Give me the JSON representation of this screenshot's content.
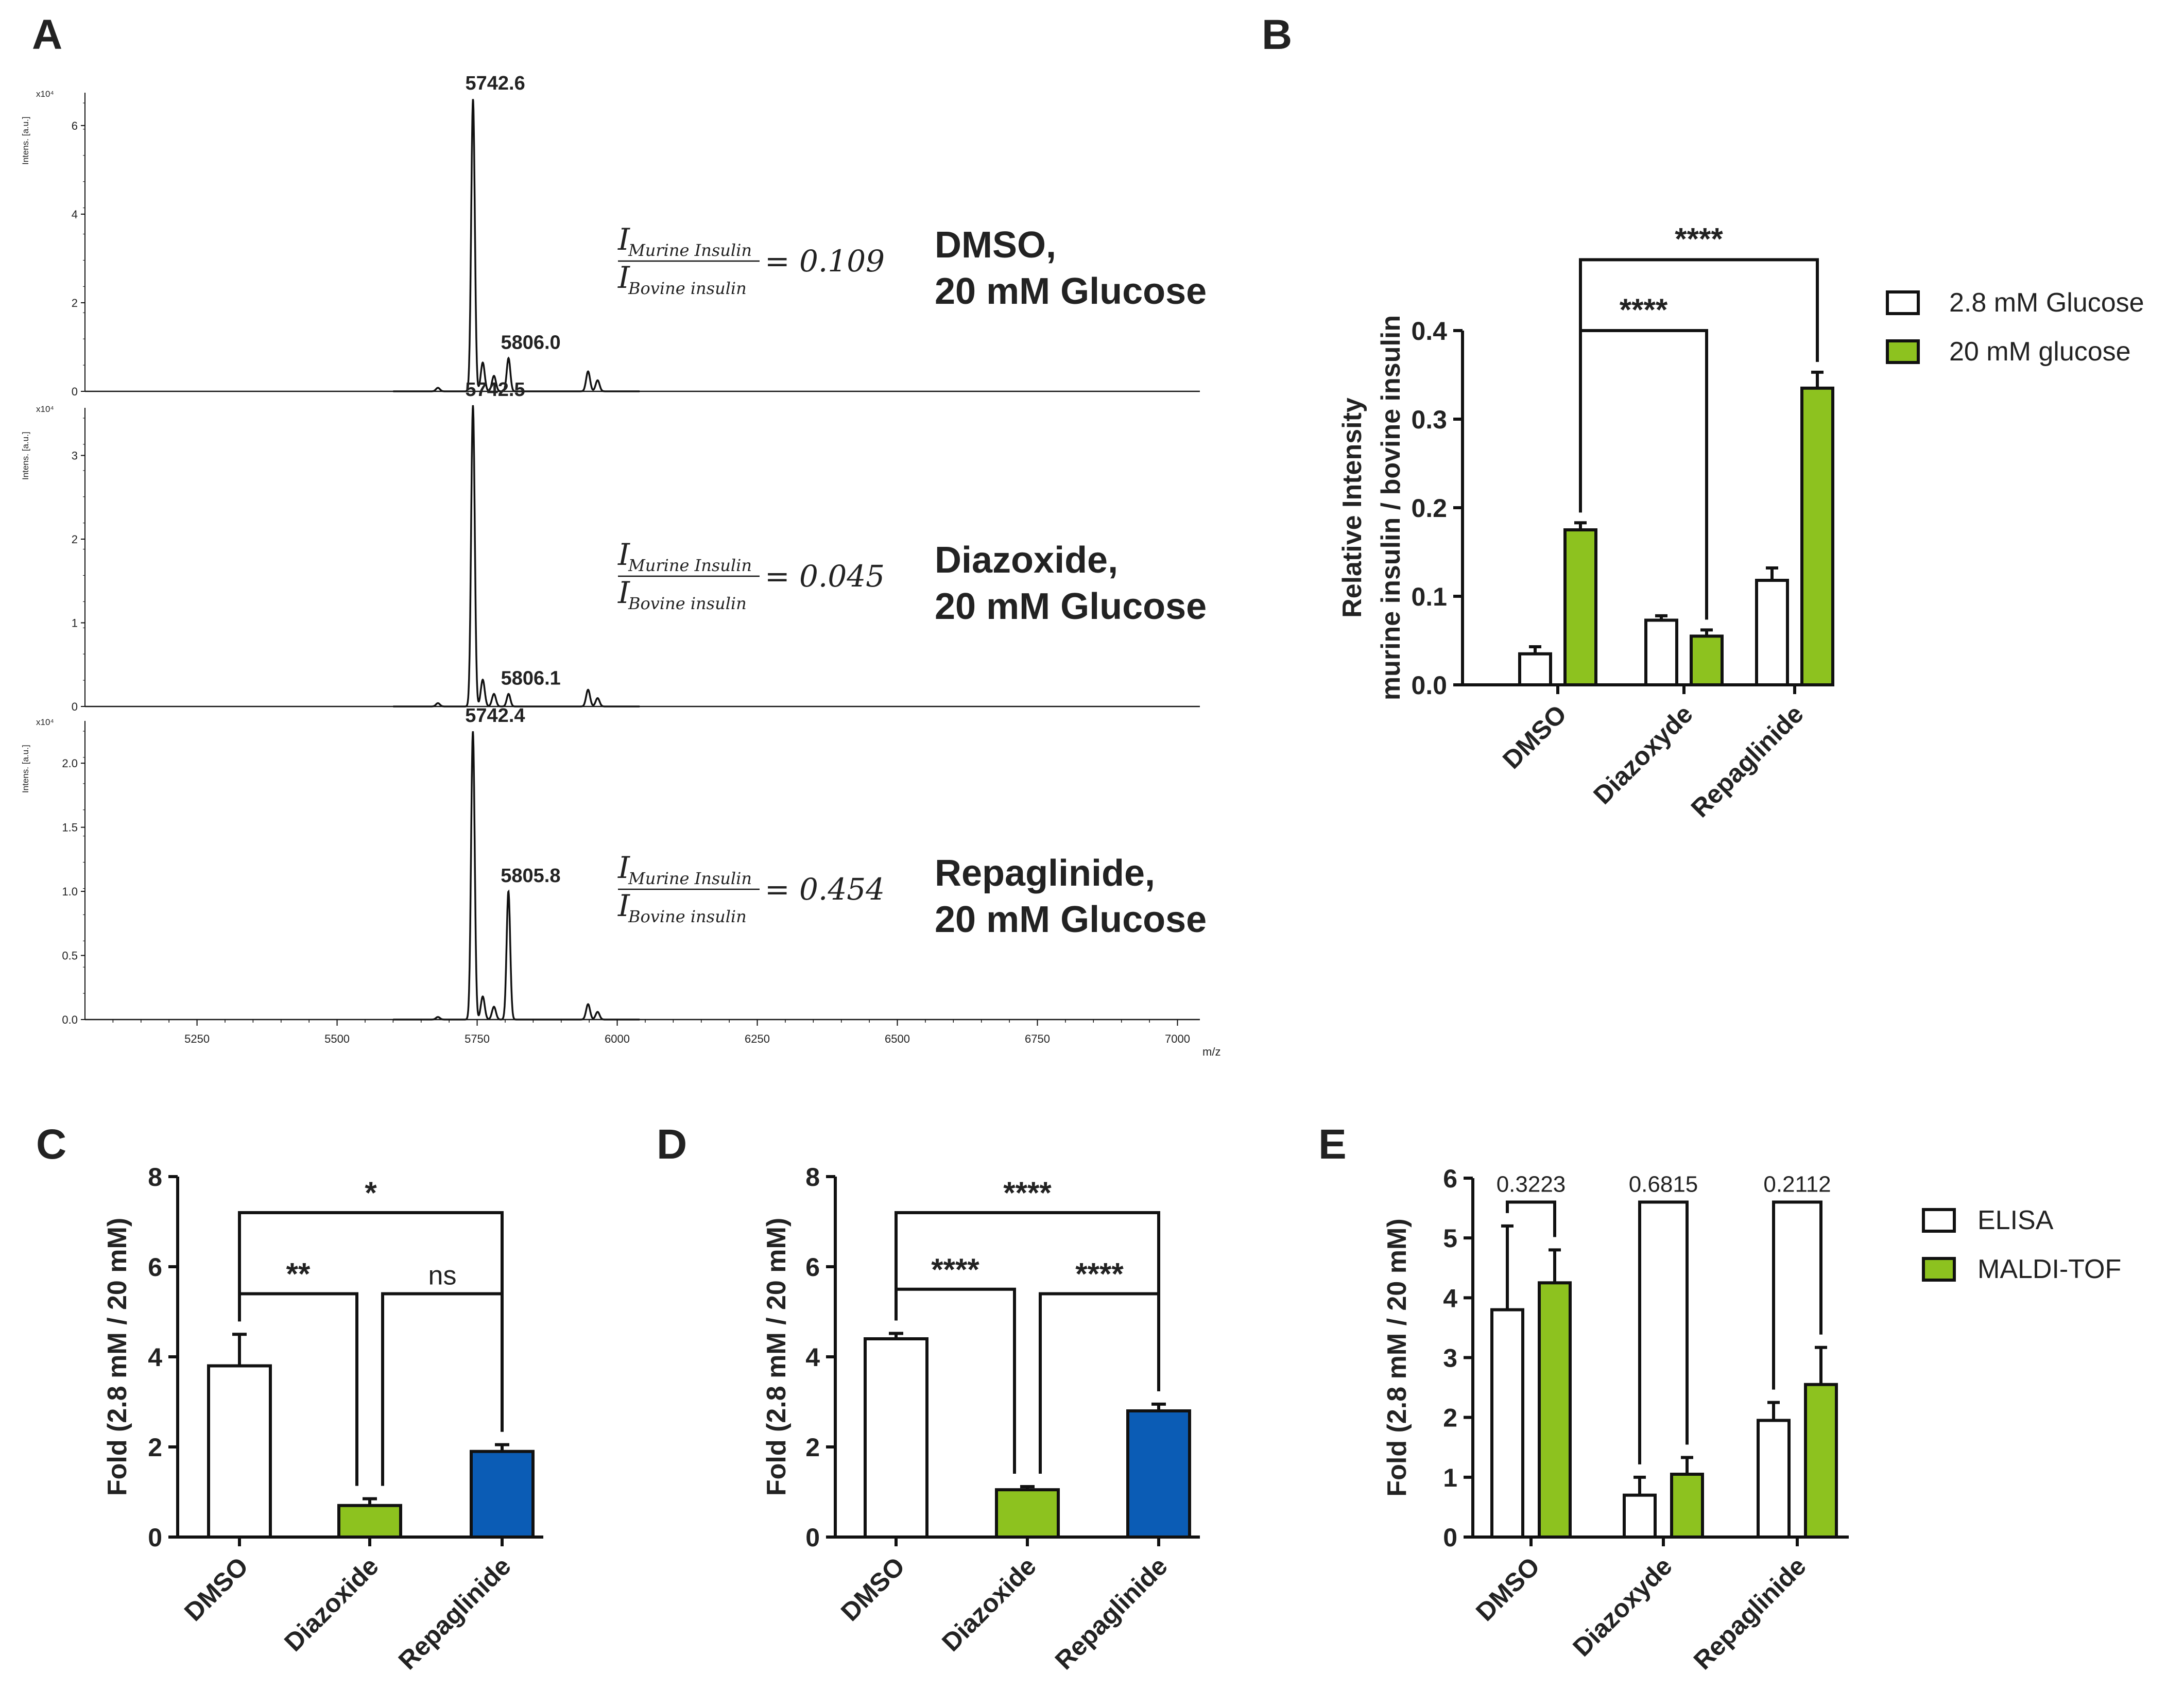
{
  "colors": {
    "green": "#8dc21f",
    "blue": "#0b5cb5",
    "white": "#ffffff",
    "line": "#111111"
  },
  "panel_letters": [
    "A",
    "B",
    "C",
    "D",
    "E"
  ],
  "chart_data": [
    {
      "panel": "A",
      "type": "line",
      "xlabel": "m/z",
      "ylabel": "Intens. [a.u.]",
      "y_multiplier": "x10⁴",
      "x_range": [
        5050,
        7040
      ],
      "x_ticks": [
        "5250",
        "5500",
        "5750",
        "6000",
        "6250",
        "6500",
        "6750",
        "7000"
      ],
      "spectra": [
        {
          "condition": [
            "DMSO,",
            "20 mM Glucose"
          ],
          "ratio": "= 0.109",
          "numerator": "Murine Insulin",
          "denominator": "Bovine insulin",
          "ylim": [
            0,
            6.8
          ],
          "y_ticks": [
            "0",
            "2",
            "4",
            "6"
          ],
          "peaks": [
            {
              "mz": 5742.6,
              "height": 6.6,
              "label": "5742.6"
            },
            {
              "mz": 5806.0,
              "height": 0.75,
              "label": "5806.0"
            },
            {
              "mz": 5760,
              "height": 0.65
            },
            {
              "mz": 5780,
              "height": 0.35
            },
            {
              "mz": 5948,
              "height": 0.45
            },
            {
              "mz": 5965,
              "height": 0.25
            },
            {
              "mz": 5680,
              "height": 0.08
            }
          ]
        },
        {
          "condition": [
            "Diazoxide,",
            "20 mM Glucose"
          ],
          "ratio": "= 0.045",
          "numerator": "Murine Insulin",
          "denominator": "Bovine insulin",
          "ylim": [
            0,
            3.6
          ],
          "y_ticks": [
            "0",
            "1",
            "2",
            "3"
          ],
          "peaks": [
            {
              "mz": 5742.5,
              "height": 3.6,
              "label": "5742.5"
            },
            {
              "mz": 5806.1,
              "height": 0.15,
              "label": "5806.1"
            },
            {
              "mz": 5760,
              "height": 0.32
            },
            {
              "mz": 5780,
              "height": 0.15
            },
            {
              "mz": 5948,
              "height": 0.2
            },
            {
              "mz": 5965,
              "height": 0.1
            },
            {
              "mz": 5680,
              "height": 0.04
            }
          ]
        },
        {
          "condition": [
            "Repaglinide,",
            "20 mM Glucose"
          ],
          "ratio": "= 0.454",
          "numerator": "Murine Insulin",
          "denominator": "Bovine insulin",
          "ylim": [
            0,
            2.35
          ],
          "y_ticks": [
            "0.0",
            "0.5",
            "1.0",
            "1.5",
            "2.0"
          ],
          "peaks": [
            {
              "mz": 5742.4,
              "height": 2.25,
              "label": "5742.4"
            },
            {
              "mz": 5805.8,
              "height": 1.0,
              "label": "5805.8"
            },
            {
              "mz": 5760,
              "height": 0.18
            },
            {
              "mz": 5780,
              "height": 0.1
            },
            {
              "mz": 5948,
              "height": 0.12
            },
            {
              "mz": 5965,
              "height": 0.06
            },
            {
              "mz": 5680,
              "height": 0.02
            }
          ]
        }
      ]
    },
    {
      "panel": "B",
      "type": "bar",
      "ylabel": [
        "Relative Intensity",
        "murine insulin / bovine insulin"
      ],
      "ylim": [
        0,
        0.4
      ],
      "y_ticks": [
        "0.0",
        "0.1",
        "0.2",
        "0.3",
        "0.4"
      ],
      "categories": [
        "DMSO",
        "Diazoxyde",
        "Repaglinide"
      ],
      "series": [
        {
          "name": "2.8 mM Glucose",
          "color": "#ffffff",
          "values": [
            0.035,
            0.073,
            0.118
          ],
          "errors": [
            0.008,
            0.005,
            0.014
          ]
        },
        {
          "name": "20 mM glucose",
          "color": "#8dc21f",
          "values": [
            0.175,
            0.055,
            0.335
          ],
          "errors": [
            0.008,
            0.007,
            0.018
          ]
        }
      ],
      "significance": [
        {
          "from": [
            0,
            1
          ],
          "to": [
            1,
            1
          ],
          "label": "****",
          "level": 0.4
        },
        {
          "from": [
            0,
            1
          ],
          "to": [
            2,
            1
          ],
          "label": "****",
          "level": 0.48
        }
      ]
    },
    {
      "panel": "C",
      "type": "bar",
      "ylabel": "Fold (2.8 mM / 20 mM)",
      "ylim": [
        0,
        8
      ],
      "y_ticks": [
        "0",
        "2",
        "4",
        "6",
        "8"
      ],
      "categories": [
        "DMSO",
        "Diazoxide",
        "Repaglinide"
      ],
      "colors": [
        "#ffffff",
        "#8dc21f",
        "#0b5cb5"
      ],
      "values": [
        3.8,
        0.7,
        1.9
      ],
      "errors": [
        0.7,
        0.15,
        0.15
      ],
      "significance": [
        {
          "from": 0,
          "to": 1,
          "label": "**",
          "level": 5.4
        },
        {
          "from": 1,
          "to": 2,
          "label": "ns",
          "level": 5.4
        },
        {
          "from": 0,
          "to": 2,
          "label": "*",
          "level": 7.2
        }
      ]
    },
    {
      "panel": "D",
      "type": "bar",
      "ylabel": "Fold (2.8 mM / 20 mM)",
      "ylim": [
        0,
        8
      ],
      "y_ticks": [
        "0",
        "2",
        "4",
        "6",
        "8"
      ],
      "categories": [
        "DMSO",
        "Diazoxide",
        "Repaglinide"
      ],
      "colors": [
        "#ffffff",
        "#8dc21f",
        "#0b5cb5"
      ],
      "values": [
        4.4,
        1.05,
        2.8
      ],
      "errors": [
        0.12,
        0.07,
        0.15
      ],
      "significance": [
        {
          "from": 0,
          "to": 1,
          "label": "****",
          "level": 5.5
        },
        {
          "from": 1,
          "to": 2,
          "label": "****",
          "level": 5.4
        },
        {
          "from": 0,
          "to": 2,
          "label": "****",
          "level": 7.2
        }
      ]
    },
    {
      "panel": "E",
      "type": "bar",
      "ylabel": "Fold (2.8 mM / 20 mM)",
      "ylim": [
        0,
        6
      ],
      "y_ticks": [
        "0",
        "1",
        "2",
        "3",
        "4",
        "5",
        "6"
      ],
      "categories": [
        "DMSO",
        "Diazoxyde",
        "Repaglinide"
      ],
      "series": [
        {
          "name": "ELISA",
          "color": "#ffffff",
          "values": [
            3.8,
            0.7,
            1.95
          ],
          "errors": [
            1.4,
            0.3,
            0.3
          ]
        },
        {
          "name": "MALDI-TOF",
          "color": "#8dc21f",
          "values": [
            4.25,
            1.05,
            2.55
          ],
          "errors": [
            0.55,
            0.28,
            0.62
          ]
        }
      ],
      "pvalues": [
        "0.3223",
        "0.6815",
        "0.2112"
      ]
    }
  ]
}
